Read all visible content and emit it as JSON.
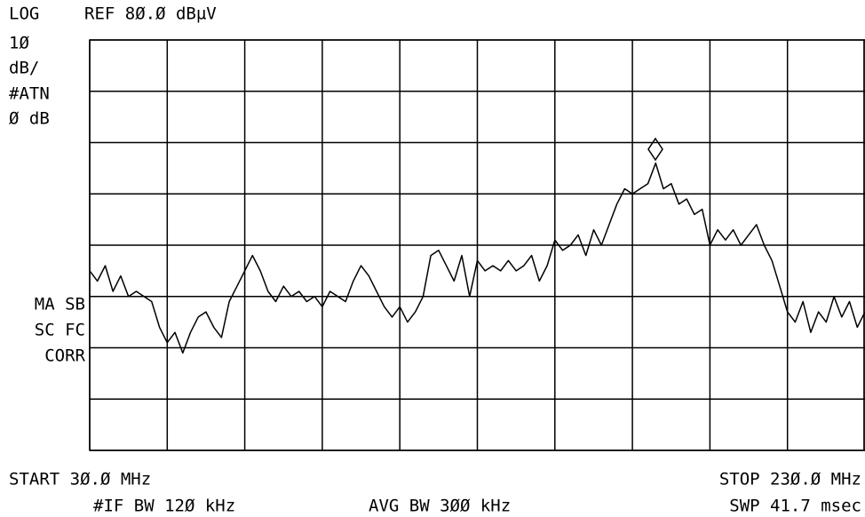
{
  "chart_data": {
    "type": "line",
    "header": {
      "scale": "LOG",
      "ref": "REF 8Ø.Ø dBµV"
    },
    "side_labels": [
      "1Ø",
      "dB/",
      "#ATN",
      "Ø dB"
    ],
    "status_labels": [
      "MA SB",
      "SC FC",
      "CORR"
    ],
    "footer": {
      "start": "START 3Ø.Ø MHz",
      "stop": "STOP 23Ø.Ø MHz",
      "if_bw": "#IF BW 12Ø kHz",
      "avg_bw": "AVG BW 3ØØ kHz",
      "sweep": "SWP 41.7 msec"
    },
    "x": [
      30,
      32,
      34,
      36,
      38,
      40,
      42,
      44,
      46,
      48,
      50,
      52,
      54,
      56,
      58,
      60,
      62,
      64,
      66,
      68,
      70,
      72,
      74,
      76,
      78,
      80,
      82,
      84,
      86,
      88,
      90,
      92,
      94,
      96,
      98,
      100,
      102,
      104,
      106,
      108,
      110,
      112,
      114,
      116,
      118,
      120,
      122,
      124,
      126,
      128,
      130,
      132,
      134,
      136,
      138,
      140,
      142,
      144,
      146,
      148,
      150,
      152,
      154,
      156,
      158,
      160,
      162,
      164,
      166,
      168,
      170,
      172,
      174,
      176,
      178,
      180,
      182,
      184,
      186,
      188,
      190,
      192,
      194,
      196,
      198,
      200,
      202,
      204,
      206,
      208,
      210,
      212,
      214,
      216,
      218,
      220,
      222,
      224,
      226,
      228,
      230
    ],
    "values": [
      35,
      33,
      36,
      31,
      34,
      30,
      31,
      30,
      29,
      24,
      21,
      23,
      19,
      23,
      26,
      27,
      24,
      22,
      29,
      32,
      35,
      38,
      35,
      31,
      29,
      32,
      30,
      31,
      29,
      30,
      28,
      31,
      30,
      29,
      33,
      36,
      34,
      31,
      28,
      26,
      28,
      25,
      27,
      30,
      38,
      39,
      36,
      33,
      38,
      30,
      37,
      35,
      36,
      35,
      37,
      35,
      36,
      38,
      33,
      36,
      41,
      39,
      40,
      42,
      38,
      43,
      40,
      44,
      48,
      51,
      50,
      51,
      52,
      56,
      51,
      52,
      48,
      49,
      46,
      47,
      40,
      43,
      41,
      43,
      40,
      42,
      44,
      40,
      37,
      32,
      27,
      25,
      29,
      23,
      27,
      25,
      30,
      26,
      29,
      24,
      27
    ],
    "color": "#000000",
    "xlim": [
      30,
      230
    ],
    "ylim": [
      0,
      80
    ],
    "xticks": [
      30,
      50,
      70,
      90,
      110,
      130,
      150,
      170,
      190,
      210,
      230
    ],
    "yticks": [
      0,
      10,
      20,
      30,
      40,
      50,
      60,
      70,
      80
    ],
    "grid": true
  }
}
